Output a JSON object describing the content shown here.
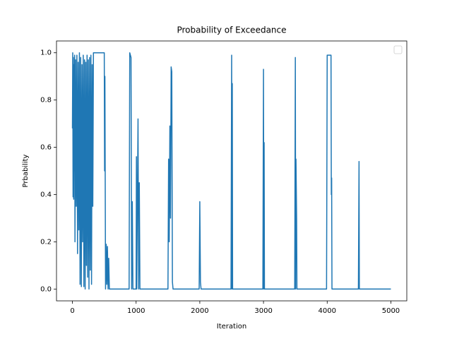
{
  "chart_data": {
    "type": "line",
    "title": "Probability of Exceedance",
    "x_label": "Iteration",
    "y_label": "Prbability",
    "x": [
      0,
      5,
      10,
      15,
      20,
      25,
      30,
      35,
      40,
      50,
      60,
      70,
      80,
      90,
      100,
      110,
      120,
      130,
      140,
      150,
      160,
      170,
      180,
      190,
      200,
      210,
      220,
      230,
      240,
      250,
      260,
      270,
      280,
      290,
      300,
      310,
      320,
      330,
      500,
      505,
      510,
      520,
      530,
      540,
      550,
      560,
      570,
      580,
      600,
      890,
      900,
      920,
      930,
      940,
      950,
      1000,
      1005,
      1010,
      1030,
      1040,
      1050,
      1060,
      1500,
      1510,
      1520,
      1530,
      1540,
      1550,
      1560,
      1570,
      1580,
      1990,
      2000,
      2010,
      2020,
      2490,
      2500,
      2505,
      2510,
      2515,
      2990,
      3000,
      3005,
      3010,
      3015,
      3490,
      3500,
      3505,
      3510,
      3520,
      3525,
      3990,
      4000,
      4060,
      4065,
      4070,
      4075,
      4490,
      4500,
      4505,
      5000
    ],
    "series": [
      {
        "color": "#1f77b4",
        "values": [
          0.68,
          1.0,
          0.39,
          0.98,
          0.38,
          0.95,
          0.5,
          0.99,
          0.2,
          0.97,
          0.35,
          0.99,
          0.15,
          0.96,
          0.25,
          1.0,
          0.02,
          0.98,
          0.01,
          0.95,
          0.2,
          0.99,
          0.01,
          0.97,
          0.0,
          0.96,
          0.1,
          0.99,
          0.05,
          0.97,
          0.0,
          0.98,
          0.08,
          0.99,
          0.02,
          0.95,
          0.35,
          1.0,
          1.0,
          0.5,
          0.9,
          0.0,
          0.19,
          0.02,
          0.18,
          0.0,
          0.13,
          0.0,
          0.0,
          0.0,
          1.0,
          0.98,
          0.0,
          0.37,
          0.0,
          0.0,
          0.56,
          0.0,
          0.72,
          0.0,
          0.45,
          0.0,
          0.0,
          0.55,
          0.2,
          0.69,
          0.3,
          0.94,
          0.92,
          0.03,
          0.0,
          0.0,
          0.37,
          0.03,
          0.0,
          0.0,
          0.99,
          0.0,
          0.87,
          0.0,
          0.0,
          0.93,
          0.0,
          0.62,
          0.0,
          0.0,
          0.98,
          0.0,
          0.55,
          0.3,
          0.0,
          0.0,
          0.99,
          0.99,
          0.4,
          0.47,
          0.0,
          0.0,
          0.54,
          0.0,
          0.0
        ]
      }
    ],
    "xlim": [
      -250,
      5250
    ],
    "ylim": [
      -0.05,
      1.05
    ],
    "xticks": [
      0,
      1000,
      2000,
      3000,
      4000,
      5000
    ],
    "yticks": [
      {
        "value": 0,
        "label": "0.0"
      },
      0.2,
      0.4,
      0.6,
      0.8,
      {
        "value": 1,
        "label": "1.0"
      }
    ],
    "legend": "upper right"
  }
}
